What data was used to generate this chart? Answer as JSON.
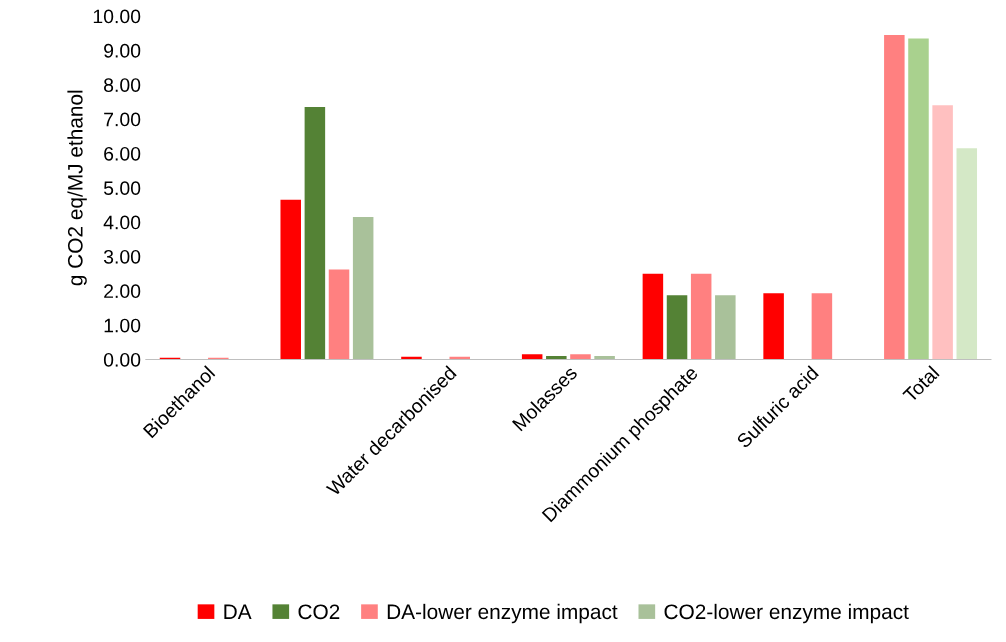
{
  "chart_data": {
    "type": "bar",
    "ylabel": "g CO2 eq/MJ ethanol",
    "categories": [
      "Bioethanol",
      null,
      "Water decarbonised",
      "Molasses",
      "Diammonium phosphate",
      "Sulfuric acid",
      "Total"
    ],
    "series": [
      {
        "name": "DA",
        "color": "#ff0000",
        "colors": [
          "#ff0000",
          "#ff0000",
          "#ff0000",
          "#ff0000",
          "#ff0000",
          "#ff0000",
          "#ff8080"
        ],
        "values": [
          0.05,
          4.65,
          0.08,
          0.15,
          2.5,
          1.93,
          9.45
        ]
      },
      {
        "name": "CO2",
        "color": "#548235",
        "colors": [
          "#548235",
          "#548235",
          "#548235",
          "#548235",
          "#548235",
          "#548235",
          "#a9d18e"
        ],
        "values": [
          null,
          7.35,
          null,
          0.1,
          1.87,
          0,
          9.35
        ]
      },
      {
        "name": "DA-lower enzyme impact",
        "color": "#ff8080",
        "colors": [
          "#ff8080",
          "#ff8080",
          "#ff8080",
          "#ff8080",
          "#ff8080",
          "#ff8080",
          "#ffc0c0"
        ],
        "values": [
          0.05,
          2.62,
          0.08,
          0.15,
          2.5,
          1.93,
          7.4
        ]
      },
      {
        "name": "CO2-lower enzyme impact",
        "color": "#a9c19a",
        "colors": [
          "#a9c19a",
          "#a9c19a",
          "#a9c19a",
          "#a9c19a",
          "#a9c19a",
          "#a9c19a",
          "#d4e8c6"
        ],
        "values": [
          null,
          4.15,
          null,
          0.1,
          1.87,
          0,
          6.15
        ]
      }
    ],
    "ylim": [
      0,
      10
    ],
    "yticks": [
      {
        "value": 0,
        "label": "0.00"
      },
      {
        "value": 1,
        "label": "1.00"
      },
      {
        "value": 2,
        "label": "2.00"
      },
      {
        "value": 3,
        "label": "3.00"
      },
      {
        "value": 4,
        "label": "4.00"
      },
      {
        "value": 5,
        "label": "5.00"
      },
      {
        "value": 6,
        "label": "6.00"
      },
      {
        "value": 7,
        "label": "7.00"
      },
      {
        "value": 8,
        "label": "8.00"
      },
      {
        "value": 9,
        "label": "9.00"
      },
      {
        "value": 10,
        "label": "10.00"
      }
    ],
    "grid": false,
    "legend": "bottom"
  }
}
